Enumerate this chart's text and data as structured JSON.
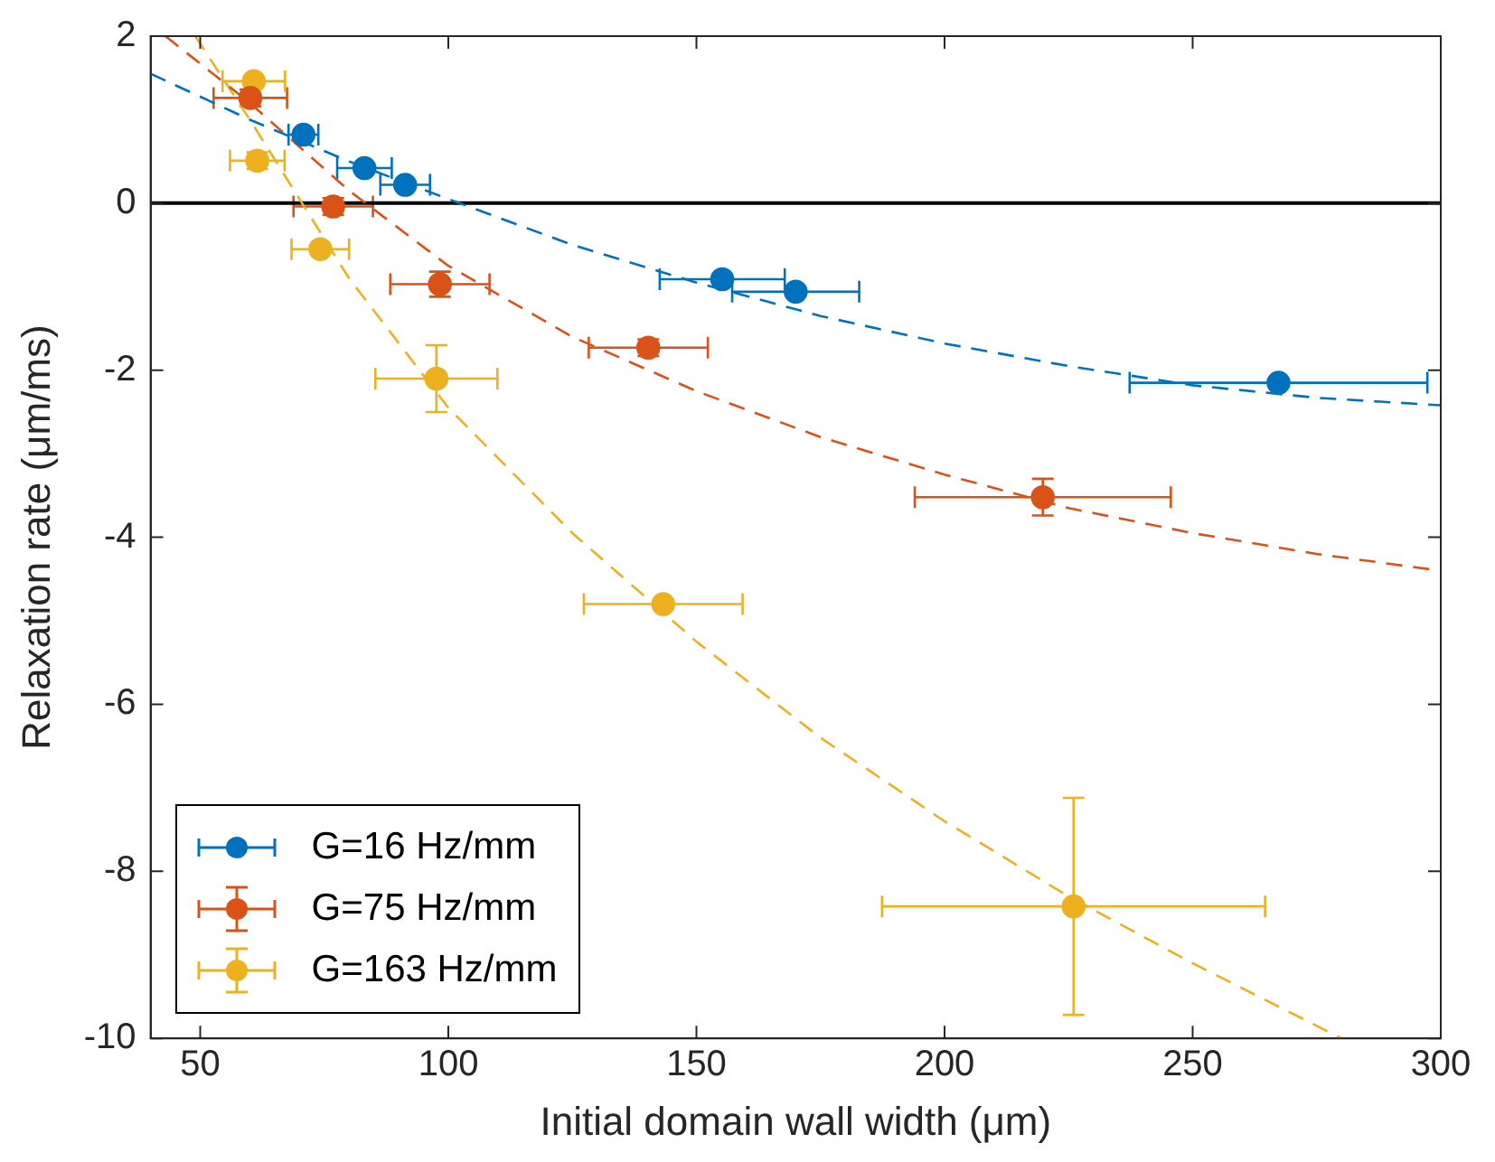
{
  "chart_data": {
    "type": "scatter",
    "xlabel": "Initial domain wall width (μm)",
    "ylabel": "Relaxation rate (μm/ms)",
    "xlim": [
      40,
      300
    ],
    "xticks": [
      50,
      100,
      150,
      200,
      250,
      300
    ],
    "ylim": [
      -10,
      2
    ],
    "yticks": [
      -10,
      -8,
      -6,
      -4,
      -2,
      0,
      2
    ],
    "grid": false,
    "legend": "bottom left",
    "marker": "circle",
    "ref_lines": [
      {
        "axis": "y",
        "value": 0,
        "color": "#000000"
      }
    ],
    "series": [
      {
        "name": "G=16 Hz/mm",
        "color": "#0072bd",
        "x": [
          70.8,
          83.1,
          91.3,
          155.2,
          170,
          267.3
        ],
        "values": [
          0.82,
          0.42,
          0.22,
          -0.91,
          -1.06,
          -2.15
        ],
        "xerrors": [
          3,
          5.5,
          5,
          12.6,
          12.8,
          30
        ]
      },
      {
        "name": "G=75 Hz/mm",
        "color": "#d95319",
        "x": [
          60.1,
          76.8,
          98.3,
          140.3,
          219.8
        ],
        "values": [
          1.26,
          -0.04,
          -0.97,
          -1.73,
          -3.52
        ],
        "errors": [
          0.1,
          0.1,
          0.15,
          0.1,
          0.22
        ],
        "xerrors": [
          7.4,
          8,
          10,
          12,
          25.8
        ]
      },
      {
        "name": "G=163 Hz/mm",
        "color": "#edb120",
        "x": [
          60.8,
          61.5,
          74.2,
          97.6,
          143.3,
          226
        ],
        "values": [
          1.46,
          0.51,
          -0.55,
          -2.1,
          -4.8,
          -8.42
        ],
        "errors": [
          null,
          0.1,
          null,
          0.4,
          null,
          1.3
        ],
        "xerrors": [
          6.3,
          5.5,
          5.8,
          12.3,
          16,
          38.6
        ]
      },
      {
        "type": "line",
        "color": "#0072bd",
        "line_style": "dashed",
        "marker": "none",
        "x": [
          40,
          60,
          80,
          100,
          125,
          150,
          175,
          200,
          225,
          250,
          275,
          300
        ],
        "values": [
          1.55,
          1.0,
          0.5,
          0.05,
          -0.5,
          -0.95,
          -1.35,
          -1.68,
          -1.95,
          -2.18,
          -2.33,
          -2.42
        ]
      },
      {
        "type": "line",
        "color": "#d95319",
        "line_style": "dashed",
        "marker": "none",
        "x": [
          43,
          60,
          80,
          100,
          125,
          150,
          175,
          200,
          225,
          250,
          275,
          300
        ],
        "values": [
          2.0,
          1.2,
          0.15,
          -0.75,
          -1.6,
          -2.25,
          -2.8,
          -3.25,
          -3.65,
          -3.95,
          -4.2,
          -4.4
        ]
      },
      {
        "type": "line",
        "color": "#edb120",
        "line_style": "dashed",
        "marker": "none",
        "x": [
          49,
          60,
          80,
          100,
          125,
          150,
          175,
          200,
          225,
          250,
          280
        ],
        "values": [
          2.0,
          1.0,
          -0.9,
          -2.45,
          -3.95,
          -5.25,
          -6.4,
          -7.4,
          -8.3,
          -9.1,
          -10
        ]
      }
    ]
  }
}
